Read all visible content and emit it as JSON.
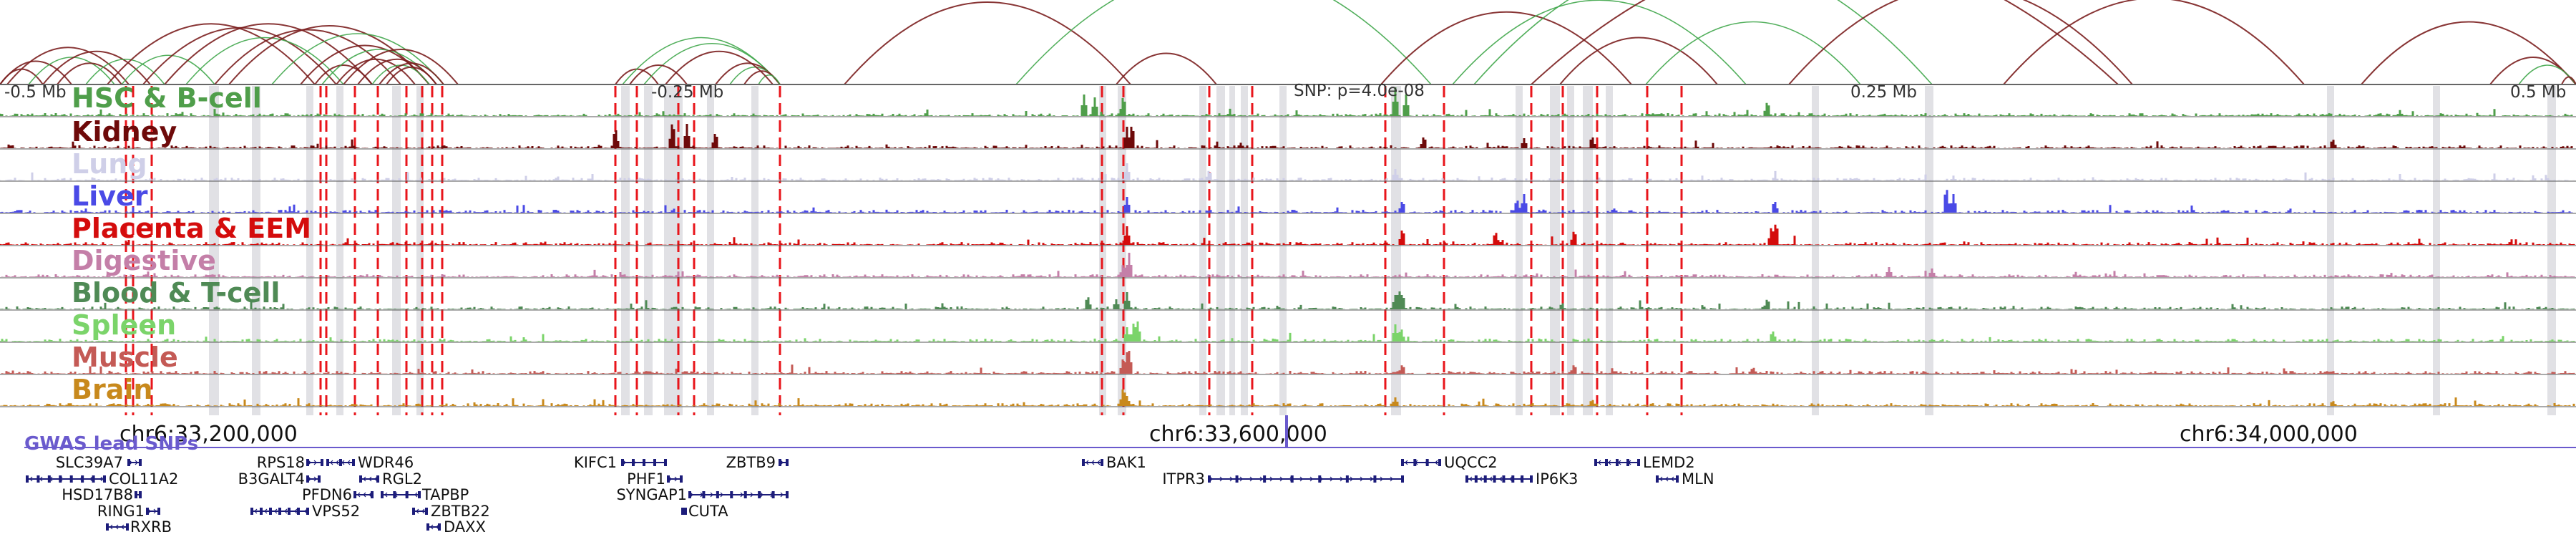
{
  "colors": {
    "background": "#ffffff",
    "arc_dark": "#7b1f1f",
    "arc_green": "#3fa64a",
    "highlight_red": "#e8151b",
    "highlight_gray": "#c9c9cf",
    "gwas": "#6a5acd",
    "gene": "#1c1c7a"
  },
  "scale_labels": [
    "-0.5 Mb",
    "-0.25 Mb",
    "SNP: p=4.0e-08",
    "0.25 Mb",
    "0.5 Mb"
  ],
  "tracks": [
    {
      "name": "HSC & B-cell",
      "color": "#4f9e4a"
    },
    {
      "name": "Kidney",
      "color": "#6e0a0a"
    },
    {
      "name": "Lung",
      "color": "#cfcfe8"
    },
    {
      "name": "Liver",
      "color": "#4a4ae6"
    },
    {
      "name": "Placenta & EEM",
      "color": "#d40c0c"
    },
    {
      "name": "Digestive",
      "color": "#c47fa8"
    },
    {
      "name": "Blood & T-cell",
      "color": "#4f8a55"
    },
    {
      "name": "Spleen",
      "color": "#7bd46a"
    },
    {
      "name": "Muscle",
      "color": "#c45a55"
    },
    {
      "name": "Brain",
      "color": "#c8891c"
    }
  ],
  "axis": {
    "coords": [
      "chr6:33,200,000",
      "chr6:33,600,000",
      "chr6:34,000,000"
    ]
  },
  "gwas_label": "GWAS lead SNPs",
  "genes": [
    {
      "name": "SLC39A7",
      "strand": "+"
    },
    {
      "name": "COL11A2",
      "strand": "-"
    },
    {
      "name": "HSD17B8",
      "strand": "+"
    },
    {
      "name": "RING1",
      "strand": "+"
    },
    {
      "name": "RXRB",
      "strand": "-"
    },
    {
      "name": "RPS18",
      "strand": "+"
    },
    {
      "name": "B3GALT4",
      "strand": "+"
    },
    {
      "name": "WDR46",
      "strand": "-"
    },
    {
      "name": "RGL2",
      "strand": "-"
    },
    {
      "name": "PFDN6",
      "strand": "-"
    },
    {
      "name": "TAPBP",
      "strand": "-"
    },
    {
      "name": "VPS52",
      "strand": "-"
    },
    {
      "name": "ZBTB22",
      "strand": "-"
    },
    {
      "name": "DAXX",
      "strand": "-"
    },
    {
      "name": "KIFC1",
      "strand": "+"
    },
    {
      "name": "PHF1",
      "strand": "+"
    },
    {
      "name": "SYNGAP1",
      "strand": "+"
    },
    {
      "name": "CUTA",
      "strand": "-"
    },
    {
      "name": "ZBTB9",
      "strand": "+"
    },
    {
      "name": "BAK1",
      "strand": "-"
    },
    {
      "name": "ITPR3",
      "strand": "+"
    },
    {
      "name": "UQCC2",
      "strand": "-"
    },
    {
      "name": "IP6K3",
      "strand": "-"
    },
    {
      "name": "LEMD2",
      "strand": "-"
    },
    {
      "name": "MLN",
      "strand": "-"
    }
  ]
}
